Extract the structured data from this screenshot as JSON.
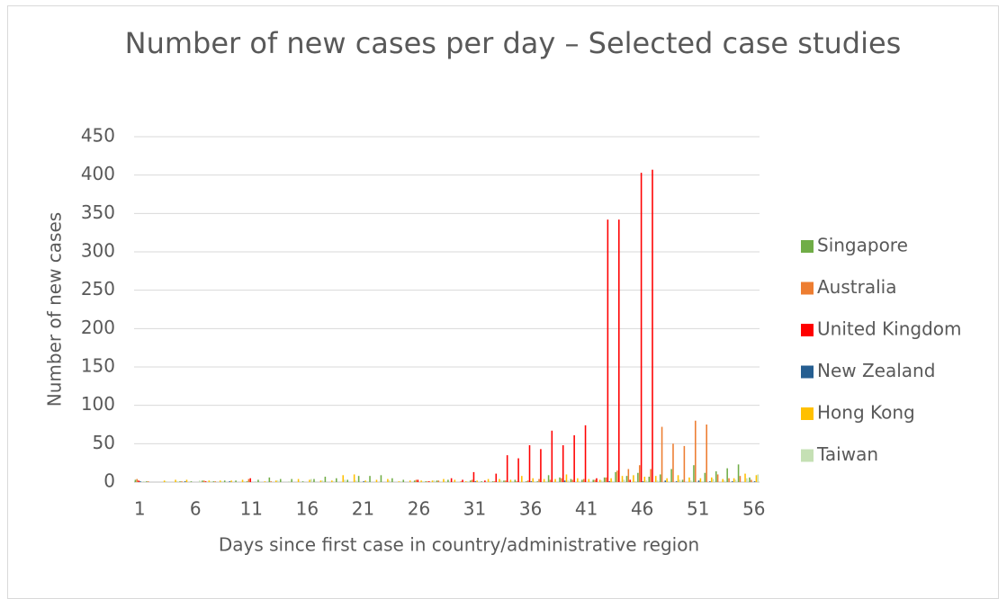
{
  "chart_data": {
    "type": "bar",
    "title": "Number of new cases per day – Selected case studies",
    "x_label": "Days since first case in country/administrative region",
    "y_label": "Number of new cases",
    "categories": [
      "1",
      null,
      null,
      null,
      null,
      "6",
      null,
      null,
      null,
      null,
      "11",
      null,
      null,
      null,
      null,
      "16",
      null,
      null,
      null,
      null,
      "21",
      null,
      null,
      null,
      null,
      "26",
      null,
      null,
      null,
      null,
      "31",
      null,
      null,
      null,
      null,
      "36",
      null,
      null,
      null,
      null,
      "41",
      null,
      null,
      null,
      null,
      "46",
      null,
      null,
      null,
      null,
      "51",
      null,
      null,
      null,
      null,
      "56"
    ],
    "series": [
      {
        "name": "Singapore",
        "color": "#70ad47",
        "values": [
          3,
          1,
          0,
          0,
          1,
          1,
          2,
          1,
          2,
          2,
          1,
          3,
          6,
          4,
          4,
          1,
          4,
          7,
          5,
          3,
          8,
          8,
          9,
          5,
          3,
          2,
          1,
          2,
          3,
          0,
          2,
          1,
          1,
          2,
          3,
          1,
          1,
          9,
          6,
          4,
          3,
          3,
          6,
          13,
          8,
          12,
          7,
          10,
          17,
          3,
          22,
          12,
          14,
          18,
          23,
          6
        ]
      },
      {
        "name": "Australia",
        "color": "#ed7d31",
        "values": [
          4,
          1,
          0,
          0,
          1,
          0,
          2,
          1,
          0,
          0,
          4,
          0,
          1,
          0,
          0,
          0,
          0,
          0,
          0,
          0,
          0,
          0,
          0,
          0,
          0,
          3,
          1,
          2,
          0,
          1,
          3,
          0,
          1,
          2,
          1,
          2,
          4,
          3,
          5,
          3,
          4,
          3,
          6,
          15,
          17,
          22,
          17,
          72,
          50,
          47,
          80,
          75,
          10,
          5,
          8,
          3
        ]
      },
      {
        "name": "United Kingdom",
        "color": "#ff0000",
        "values": [
          2,
          0,
          0,
          0,
          0,
          0,
          1,
          0,
          0,
          0,
          5,
          0,
          0,
          0,
          0,
          0,
          0,
          0,
          0,
          0,
          0,
          0,
          0,
          0,
          0,
          3,
          1,
          0,
          5,
          3,
          13,
          2,
          11,
          35,
          31,
          48,
          43,
          67,
          48,
          61,
          74,
          5,
          342,
          342,
          3,
          403,
          407,
          0,
          0,
          0,
          0,
          0,
          0,
          0,
          0,
          0
        ]
      },
      {
        "name": "New Zealand",
        "color": "#255e91",
        "values": [
          1,
          0,
          0,
          0,
          1,
          0,
          0,
          0,
          1,
          0,
          0,
          0,
          0,
          0,
          0,
          0,
          0,
          0,
          0,
          0,
          1,
          0,
          0,
          0,
          0,
          0,
          0,
          0,
          0,
          0,
          1,
          0,
          0,
          0,
          0,
          1,
          0,
          0,
          2,
          0,
          0,
          0,
          1,
          0,
          0,
          1,
          0,
          2,
          1,
          0,
          2,
          1,
          0,
          1,
          0,
          1
        ]
      },
      {
        "name": "Hong Kong",
        "color": "#ffc000",
        "values": [
          0,
          0,
          2,
          3,
          3,
          0,
          2,
          2,
          2,
          3,
          0,
          1,
          2,
          0,
          4,
          3,
          2,
          2,
          9,
          10,
          2,
          3,
          4,
          1,
          2,
          2,
          2,
          4,
          3,
          1,
          2,
          4,
          4,
          3,
          8,
          5,
          4,
          4,
          10,
          5,
          4,
          3,
          5,
          8,
          9,
          7,
          8,
          5,
          9,
          6,
          5,
          6,
          4,
          5,
          11,
          9
        ]
      },
      {
        "name": "Taiwan",
        "color": "#c5e0b4",
        "values": [
          1,
          0,
          1,
          1,
          0,
          2,
          1,
          1,
          0,
          1,
          1,
          0,
          2,
          1,
          0,
          4,
          2,
          1,
          3,
          2,
          1,
          0,
          2,
          1,
          0,
          1,
          2,
          1,
          0,
          1,
          0,
          1,
          2,
          1,
          0,
          1,
          1,
          0,
          2,
          1,
          0,
          2,
          1,
          3,
          1,
          2,
          2,
          1,
          3,
          2,
          1,
          4,
          2,
          3,
          5,
          10
        ]
      }
    ],
    "ylim": [
      0,
      450
    ],
    "yticks": [
      0,
      50,
      100,
      150,
      200,
      250,
      300,
      350,
      400,
      450
    ],
    "grid": true,
    "legend": "right"
  }
}
